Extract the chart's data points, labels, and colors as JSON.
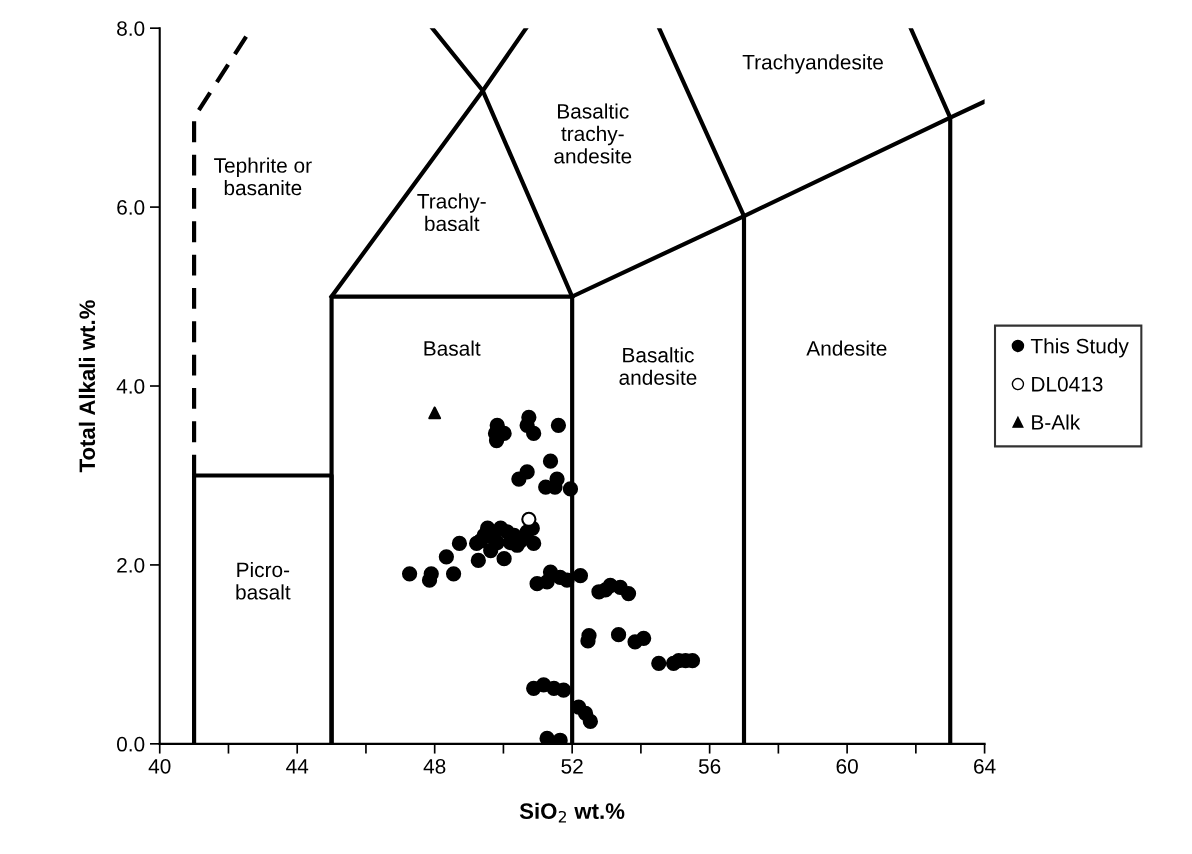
{
  "chart_data": {
    "type": "scatter",
    "xlabel": "SiO$_{2}$ wt.%",
    "ylabel": "Total Alkali wt.%",
    "xlim": [
      40,
      64
    ],
    "ylim": [
      0,
      8
    ],
    "xticks": [
      40,
      {
        "value": 42,
        "label": null
      },
      44,
      {
        "value": 46,
        "label": null
      },
      48,
      {
        "value": 50,
        "label": null
      },
      52,
      {
        "value": 54,
        "label": null
      },
      56,
      {
        "value": 58,
        "label": null
      },
      60,
      {
        "value": 62,
        "label": null
      },
      64
    ],
    "yticks": [
      {
        "value": 0,
        "label": "0.0"
      },
      {
        "value": 2,
        "label": "2.0"
      },
      {
        "value": 4,
        "label": "4.0"
      },
      {
        "value": 6,
        "label": "6.0"
      },
      {
        "value": 8,
        "label": "8.0"
      }
    ],
    "grid": false,
    "legend": "right",
    "series": [
      {
        "type": "line",
        "color": "#000000",
        "x": [
          41,
          41,
          45,
          45
        ],
        "values": [
          0,
          3,
          3,
          0
        ]
      },
      {
        "type": "line",
        "color": "#000000",
        "line_style": "dashed",
        "x": [
          41,
          41,
          42.67
        ],
        "values": [
          3,
          7,
          8
        ]
      },
      {
        "type": "line",
        "color": "#000000",
        "x": [
          45,
          45,
          52,
          52
        ],
        "values": [
          0,
          5,
          5,
          0
        ]
      },
      {
        "type": "line",
        "color": "#000000",
        "x": [
          45,
          49.4,
          50.66
        ],
        "values": [
          5,
          7.3,
          8
        ]
      },
      {
        "type": "line",
        "color": "#000000",
        "x": [
          52,
          49.4,
          47.93
        ],
        "values": [
          5,
          7.3,
          8
        ]
      },
      {
        "type": "line",
        "color": "#000000",
        "x": [
          52,
          57,
          63,
          64
        ],
        "values": [
          5,
          5.9,
          7,
          7.18
        ]
      },
      {
        "type": "line",
        "color": "#000000",
        "x": [
          57,
          57,
          54.53
        ],
        "values": [
          0,
          5.9,
          8
        ]
      },
      {
        "type": "line",
        "color": "#000000",
        "x": [
          63,
          63,
          61.85
        ],
        "values": [
          0,
          7,
          8
        ]
      },
      {
        "name": "This Study",
        "marker": "circle",
        "color": "#000000",
        "x": [
          49.82,
          49.77,
          49.8,
          50.02,
          50.74,
          50.69,
          50.88,
          51.6,
          51.37,
          50.69,
          50.45,
          51.23,
          51.56,
          51.5,
          51.95,
          48.72,
          49.22,
          48.34,
          49.27,
          47.27,
          47.9,
          47.85,
          48.55,
          49.44,
          49.54,
          49.73,
          49.63,
          49.92,
          50.11,
          50.31,
          50.4,
          50.69,
          50.84,
          50.88,
          50.02,
          49.34,
          49.82,
          50.5,
          50.2,
          50.98,
          51.37,
          51.27,
          51.65,
          51.85,
          52.24,
          52.78,
          53.11,
          53.4,
          53.64,
          52.97,
          52.49,
          52.46,
          53.35,
          53.83,
          54.08,
          54.52,
          54.95,
          55.1,
          55.3,
          55.5,
          50.88,
          51.17,
          51.47,
          51.75,
          52.19,
          52.39,
          52.53,
          51.27,
          51.65
        ],
        "values": [
          3.56,
          3.47,
          3.39,
          3.47,
          3.65,
          3.56,
          3.47,
          3.56,
          3.16,
          3.04,
          2.96,
          2.87,
          2.96,
          2.87,
          2.85,
          2.24,
          2.24,
          2.09,
          2.05,
          1.9,
          1.9,
          1.83,
          1.9,
          2.33,
          2.41,
          2.29,
          2.16,
          2.41,
          2.37,
          2.33,
          2.22,
          2.37,
          2.41,
          2.24,
          2.07,
          2.27,
          2.25,
          2.27,
          2.25,
          1.79,
          1.92,
          1.81,
          1.86,
          1.83,
          1.88,
          1.7,
          1.77,
          1.75,
          1.68,
          1.72,
          1.21,
          1.15,
          1.22,
          1.14,
          1.18,
          0.9,
          0.9,
          0.93,
          0.93,
          0.93,
          0.62,
          0.66,
          0.62,
          0.6,
          0.41,
          0.34,
          0.25,
          0.06,
          0.04
        ]
      },
      {
        "name": "DL0413",
        "marker": "circle",
        "color": "#ffffff",
        "x": [
          50.74
        ],
        "values": [
          2.51
        ]
      },
      {
        "name": "B-Alk",
        "marker": "triangle",
        "color": "#000000",
        "x": [
          48.0
        ],
        "values": [
          3.7
        ]
      }
    ],
    "annotations": [
      "Tephrite or\nbasanite",
      "Trachy-\nbasalt",
      "Basaltic\ntrachy-\nandesite",
      "Trachyandesite",
      "Basalt",
      "Basaltic\nandesite",
      "Andesite",
      "Picro-\nbasalt"
    ]
  }
}
